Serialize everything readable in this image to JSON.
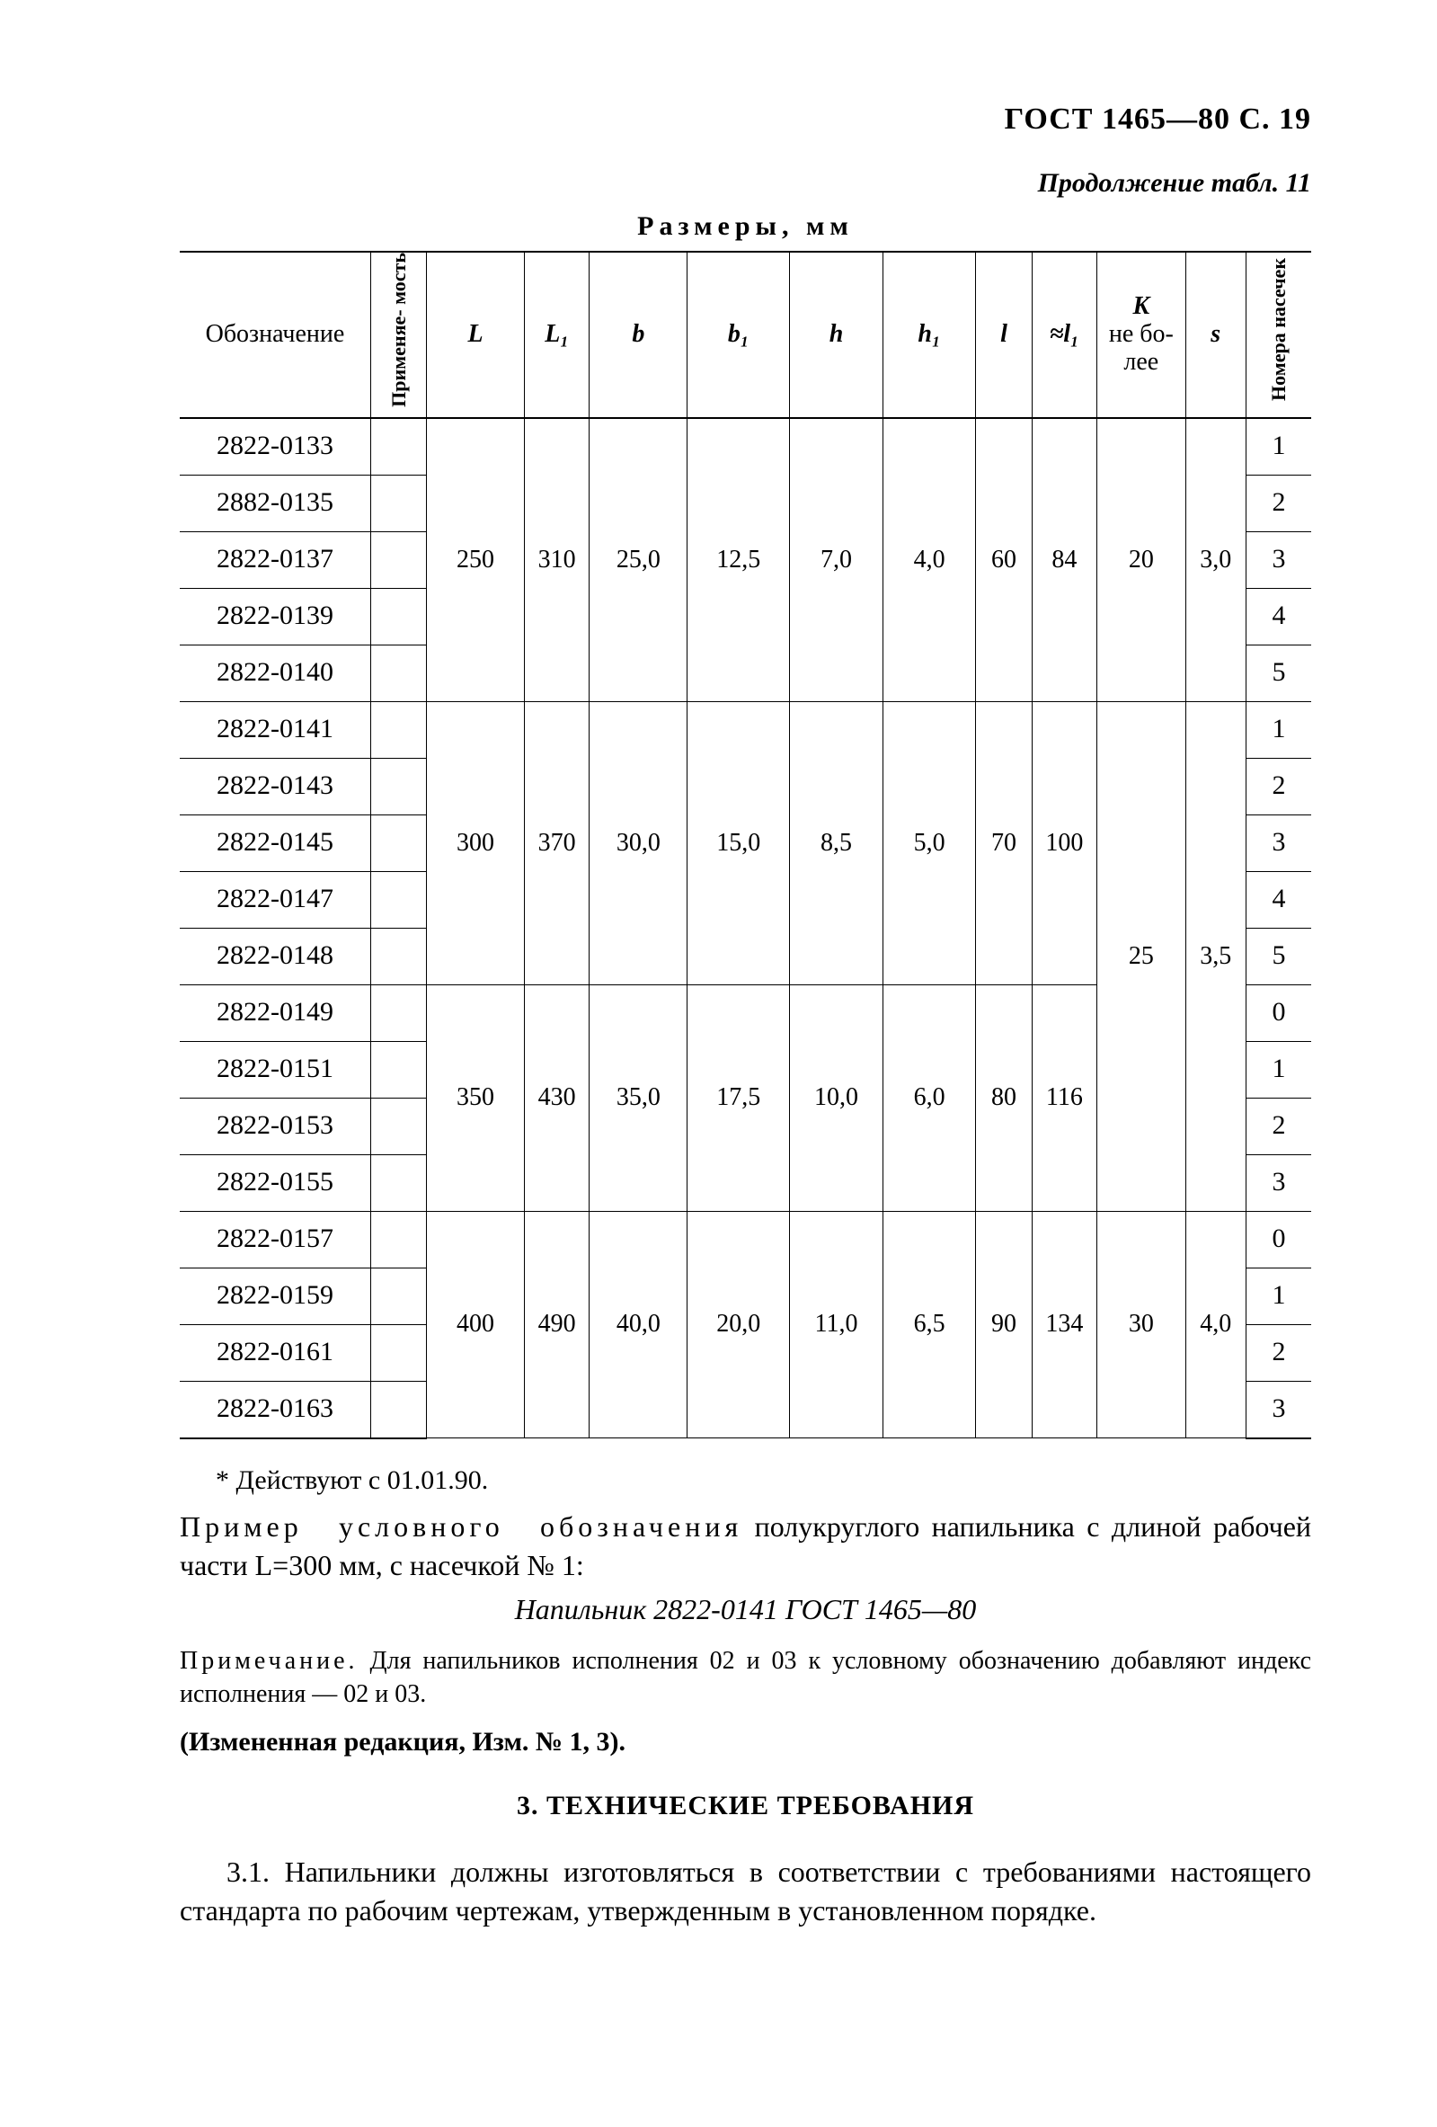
{
  "header": {
    "standard": "ГОСТ  1465—80   С. 19",
    "continuation": "Продолжение табл. 11",
    "dimensions_caption": "Размеры, мм"
  },
  "columns": {
    "designation": "Обозначение",
    "applicability": "Применяе-\nмость",
    "L": "L",
    "L1": "L₁",
    "b": "b",
    "b1": "b₁",
    "h": "h",
    "h1": "h₁",
    "l": "l",
    "l1": "≈l₁",
    "K": "K\nне бо-\nлее",
    "s": "s",
    "notch": "Номера\nнасечек"
  },
  "groups": [
    {
      "L": "250",
      "L1": "310",
      "b": "25,0",
      "b1": "12,5",
      "h": "7,0",
      "h1": "4,0",
      "l": "60",
      "l1": "84",
      "K": "20",
      "s": "3,0",
      "rows": [
        {
          "des": "2822-0133",
          "notch": "1"
        },
        {
          "des": "2882-0135",
          "notch": "2"
        },
        {
          "des": "2822-0137",
          "notch": "3"
        },
        {
          "des": "2822-0139",
          "notch": "4"
        },
        {
          "des": "2822-0140",
          "notch": "5"
        }
      ]
    },
    {
      "L": "300",
      "L1": "370",
      "b": "30,0",
      "b1": "15,0",
      "h": "8,5",
      "h1": "5,0",
      "l": "70",
      "l1": "100",
      "K": "25",
      "s": "3,5",
      "rows": [
        {
          "des": "2822-0141",
          "notch": "1"
        },
        {
          "des": "2822-0143",
          "notch": "2"
        },
        {
          "des": "2822-0145",
          "notch": "3"
        },
        {
          "des": "2822-0147",
          "notch": "4"
        },
        {
          "des": "2822-0148",
          "notch": "5"
        }
      ]
    },
    {
      "L": "350",
      "L1": "430",
      "b": "35,0",
      "b1": "17,5",
      "h": "10,0",
      "h1": "6,0",
      "l": "80",
      "l1": "116",
      "rows": [
        {
          "des": "2822-0149",
          "notch": "0"
        },
        {
          "des": "2822-0151",
          "notch": "1"
        },
        {
          "des": "2822-0153",
          "notch": "2"
        },
        {
          "des": "2822-0155",
          "notch": "3"
        }
      ]
    },
    {
      "L": "400",
      "L1": "490",
      "b": "40,0",
      "b1": "20,0",
      "h": "11,0",
      "h1": "6,5",
      "l": "90",
      "l1": "134",
      "K": "30",
      "s": "4,0",
      "rows": [
        {
          "des": "2822-0157",
          "notch": "0"
        },
        {
          "des": "2822-0159",
          "notch": "1"
        },
        {
          "des": "2822-0161",
          "notch": "2"
        },
        {
          "des": "2822-0163",
          "notch": "3"
        }
      ]
    }
  ],
  "Ks_span2_3": {
    "K": "25",
    "s": "3,5",
    "rowspan": 9
  },
  "footnote": "* Действуют с 01.01.90.",
  "example": {
    "lead": "Пример условного обозначения",
    "lead_spaced_1": "Пример",
    "lead_spaced_2": "условного",
    "lead_spaced_3": "обозначения",
    "tail": " полукруглого на­пильника с длиной рабочей части L=300 мм, с насечкой № 1:",
    "line": "Напильник 2822-0141 ГОСТ 1465—80"
  },
  "note": {
    "label": "Примечание.",
    "text": " Для напильников исполнения 02 и 03 к условному обоз­начению добавляют индекс исполнения — 02 и 03."
  },
  "changed": "(Измененная редакция, Изм. № 1, 3).",
  "section_title": "3. ТЕХНИЧЕСКИЕ ТРЕБОВАНИЯ",
  "p31": "3.1. Напильники должны изготовляться в соответствии с тре­бованиями настоящего стандарта по рабочим чертежам, утверж­денным в установленном порядке.",
  "style": {
    "page_bg": "#ffffff",
    "text_color": "#000000",
    "rule_color": "#000000",
    "base_font_pt": 30,
    "header_font_pt": 34,
    "table_font_pt": 28,
    "vtext_font_pt": 22,
    "body_font_pt": 32
  }
}
